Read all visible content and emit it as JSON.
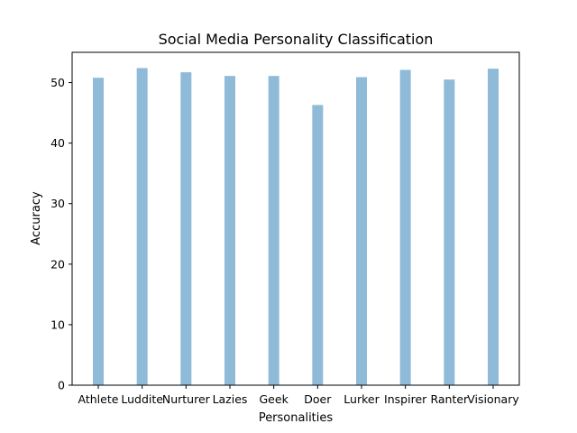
{
  "chart_data": {
    "type": "bar",
    "title": "Social Media Personality Classification",
    "xlabel": "Personalities",
    "ylabel": "Accuracy",
    "categories": [
      "Athlete",
      "Luddite",
      "Nurturer",
      "Lazies",
      "Geek",
      "Doer",
      "Lurker",
      "Inspirer",
      "Ranter",
      "Visionary"
    ],
    "values": [
      50.8,
      52.4,
      51.7,
      51.1,
      51.1,
      46.3,
      50.9,
      52.1,
      50.5,
      52.3
    ],
    "ylim": [
      0,
      55
    ],
    "yticks": [
      0,
      10,
      20,
      30,
      40,
      50
    ],
    "bar_color": "#8fbbd9",
    "grid": false,
    "legend": "none"
  }
}
